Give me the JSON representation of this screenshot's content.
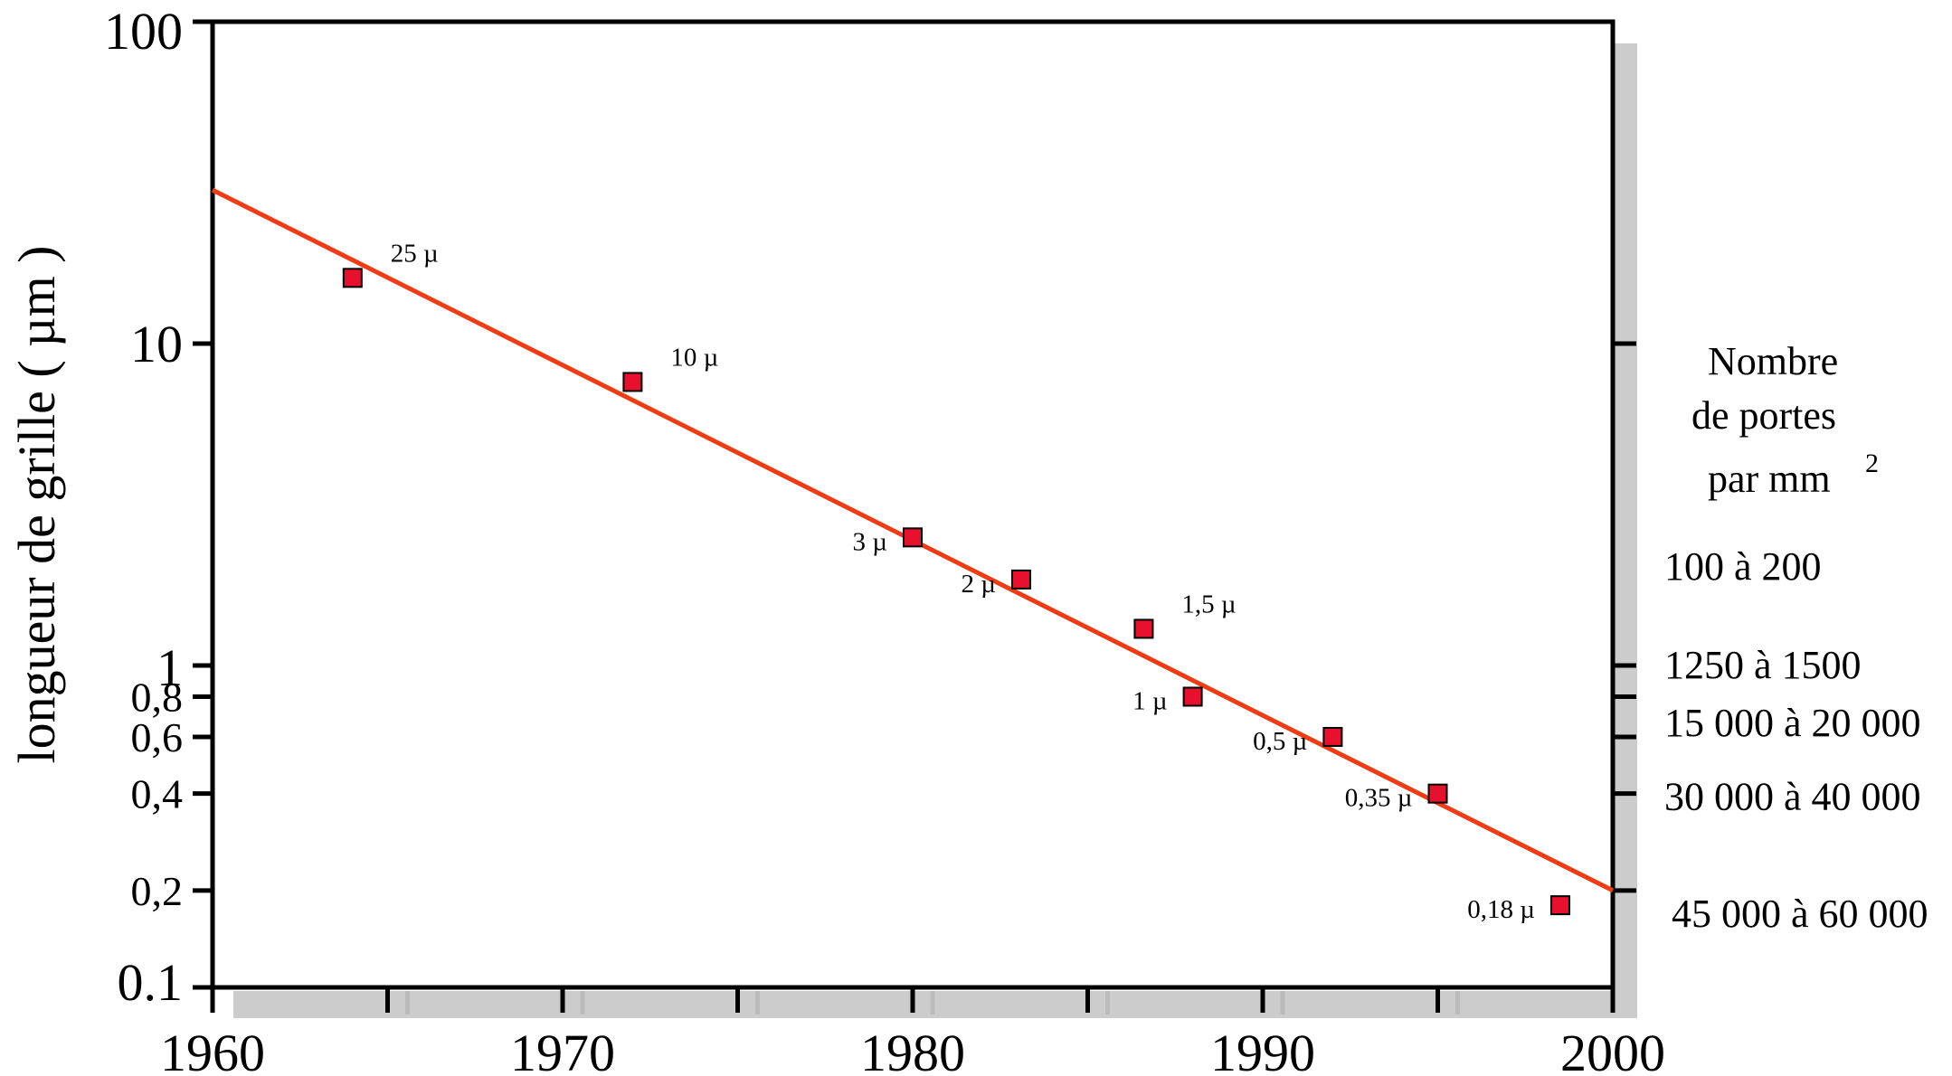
{
  "chart_data": {
    "type": "scatter",
    "title": "",
    "ylabel": "longueur de grille ( µm )",
    "xlabel": "",
    "y_scale": "log",
    "xlim": [
      1960,
      2000
    ],
    "ylim": [
      0.1,
      100
    ],
    "x_ticks": [
      "1960",
      "1970",
      "1980",
      "1990",
      "2000"
    ],
    "y_ticks": [
      {
        "label": "100",
        "value": 100,
        "size": "large"
      },
      {
        "label": "10",
        "value": 10,
        "size": "large"
      },
      {
        "label": "1",
        "value": 1,
        "size": "large"
      },
      {
        "label": "0,8",
        "value": 0.8,
        "size": "small"
      },
      {
        "label": "0,6",
        "value": 0.6,
        "size": "small"
      },
      {
        "label": "0,4",
        "value": 0.4,
        "size": "small"
      },
      {
        "label": "0,2",
        "value": 0.2,
        "size": "small"
      },
      {
        "label": "0.1",
        "value": 0.1,
        "size": "large"
      }
    ],
    "points": [
      {
        "x": 1964,
        "y": 16,
        "label": "25 µ",
        "label_side": "right"
      },
      {
        "x": 1972,
        "y": 7.6,
        "label": "10 µ",
        "label_side": "right"
      },
      {
        "x": 1980,
        "y": 2.5,
        "label": "3 µ",
        "label_side": "left"
      },
      {
        "x": 1983.1,
        "y": 1.85,
        "label": "2 µ",
        "label_side": "left"
      },
      {
        "x": 1986.6,
        "y": 1.3,
        "label": "1,5 µ",
        "label_side": "right"
      },
      {
        "x": 1988,
        "y": 0.8,
        "label": "1 µ",
        "label_side": "left"
      },
      {
        "x": 1992,
        "y": 0.6,
        "label": "0,5 µ",
        "label_side": "left"
      },
      {
        "x": 1995,
        "y": 0.4,
        "label": "0,35 µ",
        "label_side": "left"
      },
      {
        "x": 1998.5,
        "y": 0.18,
        "label": "0,18 µ",
        "label_side": "left"
      }
    ],
    "trend_line": {
      "x": [
        1960,
        2000
      ],
      "y": [
        30,
        0.2
      ],
      "color": "#f03c14"
    },
    "marker_color": "#e8112d",
    "grid": false,
    "right_axis": {
      "title_lines": [
        "Nombre",
        "de portes",
        "par mm"
      ],
      "title_superscript": "2",
      "labels": [
        {
          "text": "100 à 200",
          "y": 2.0
        },
        {
          "text": "1250 à 1500",
          "y": 1.0
        },
        {
          "text": "15  000 à 20 000",
          "y": 0.6
        },
        {
          "text": "30  000 à 40 000",
          "y": 0.4
        },
        {
          "text": "45 000 à 60 000",
          "y": 0.2
        }
      ],
      "tick_values": [
        10,
        1,
        0.8,
        0.6,
        0.4,
        0.2
      ]
    }
  }
}
